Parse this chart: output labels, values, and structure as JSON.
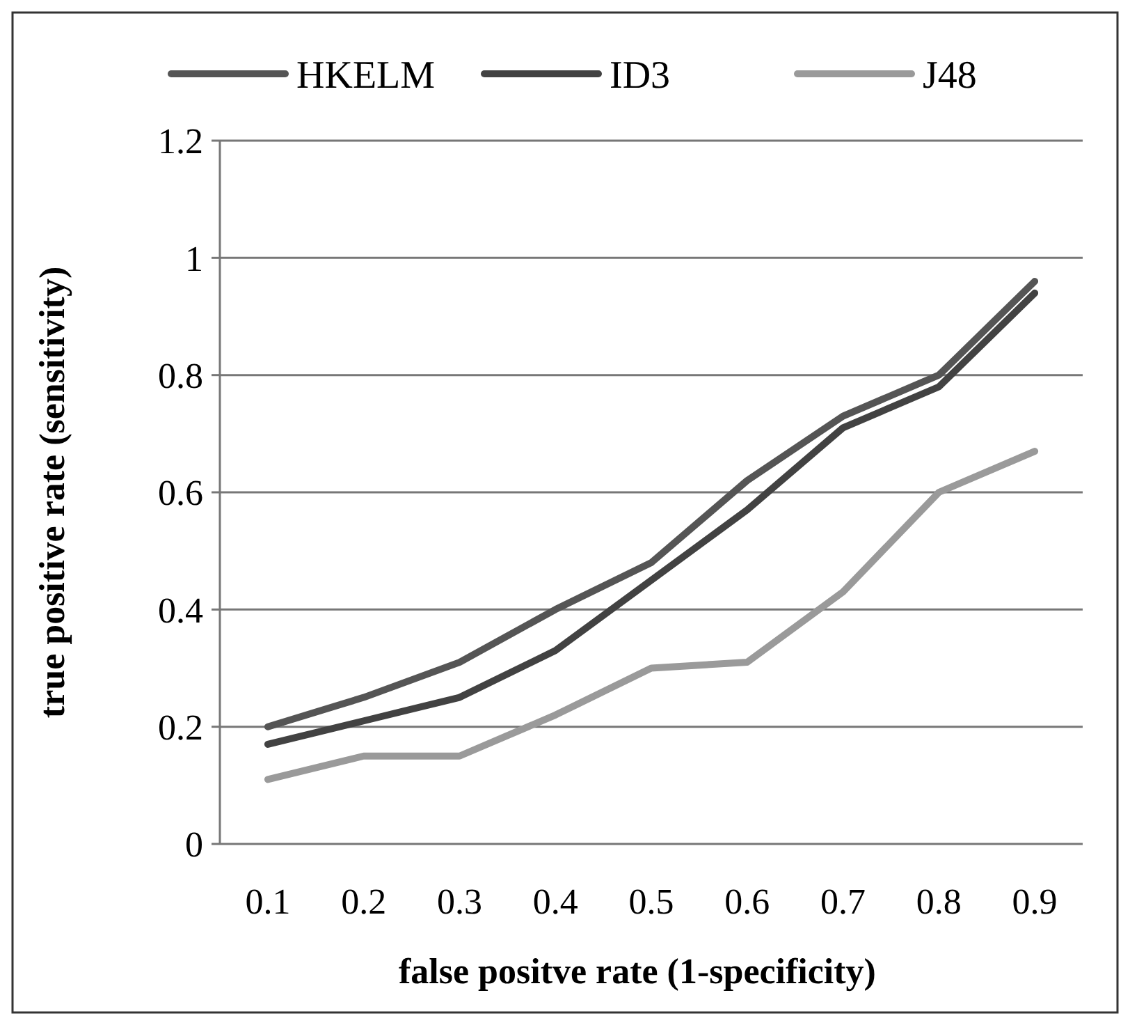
{
  "chart_data": {
    "type": "line",
    "xlabel": "false positve rate (1-specificity)",
    "ylabel": "true positive rate (sensitivity)",
    "categories": [
      "0.1",
      "0.2",
      "0.3",
      "0.4",
      "0.5",
      "0.6",
      "0.7",
      "0.8",
      "0.9"
    ],
    "series": [
      {
        "name": "HKELM",
        "color": "#555555",
        "values": [
          0.2,
          0.25,
          0.31,
          0.4,
          0.48,
          0.62,
          0.73,
          0.8,
          0.96
        ]
      },
      {
        "name": "ID3",
        "color": "#424242",
        "values": [
          0.17,
          0.21,
          0.25,
          0.33,
          0.45,
          0.57,
          0.71,
          0.78,
          0.94
        ]
      },
      {
        "name": "J48",
        "color": "#9a9a9a",
        "values": [
          0.11,
          0.15,
          0.15,
          0.22,
          0.3,
          0.31,
          0.43,
          0.6,
          0.67
        ]
      }
    ],
    "ylim": [
      0,
      1.2
    ],
    "yticks": [
      0,
      0.2,
      0.4,
      0.6,
      0.8,
      1,
      1.2
    ],
    "grid": "y",
    "legend": "top",
    "line_style": "solid"
  }
}
